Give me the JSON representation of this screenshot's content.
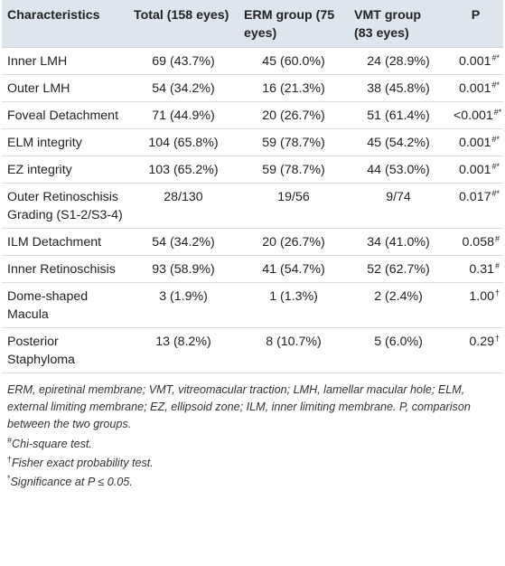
{
  "headers": {
    "characteristics": "Characteristics",
    "total": "Total (158 eyes)",
    "erm": "ERM group (75 eyes)",
    "vmt": "VMT group (83 eyes)",
    "p": "P"
  },
  "rows": [
    {
      "name": "Inner LMH",
      "total": "69 (43.7%)",
      "erm": "45 (60.0%)",
      "vmt": "24 (28.9%)",
      "p": "0.001",
      "p_marks": "#*"
    },
    {
      "name": "Outer LMH",
      "total": "54 (34.2%)",
      "erm": "16 (21.3%)",
      "vmt": "38 (45.8%)",
      "p": "0.001",
      "p_marks": "#*"
    },
    {
      "name": "Foveal Detachment",
      "total": "71 (44.9%)",
      "erm": "20 (26.7%)",
      "vmt": "51 (61.4%)",
      "p": "<0.001",
      "p_marks": "#*"
    },
    {
      "name": "ELM integrity",
      "total": "104 (65.8%)",
      "erm": "59 (78.7%)",
      "vmt": "45 (54.2%)",
      "p": "0.001",
      "p_marks": "#*"
    },
    {
      "name": "EZ integrity",
      "total": "103 (65.2%)",
      "erm": "59 (78.7%)",
      "vmt": "44 (53.0%)",
      "p": "0.001",
      "p_marks": "#*"
    },
    {
      "name": "Outer Retinoschisis Grading (S1-2/S3-4)",
      "total": "28/130",
      "erm": "19/56",
      "vmt": "9/74",
      "p": "0.017",
      "p_marks": "#*"
    },
    {
      "name": "ILM Detachment",
      "total": "54 (34.2%)",
      "erm": "20 (26.7%)",
      "vmt": "34 (41.0%)",
      "p": "0.058",
      "p_marks": "#"
    },
    {
      "name": "Inner Retinoschisis",
      "total": "93 (58.9%)",
      "erm": "41 (54.7%)",
      "vmt": "52 (62.7%)",
      "p": "0.31",
      "p_marks": "#"
    },
    {
      "name": "Dome-shaped Macula",
      "total": "3 (1.9%)",
      "erm": "1 (1.3%)",
      "vmt": "2 (2.4%)",
      "p": "1.00",
      "p_marks": "†"
    },
    {
      "name": "Posterior Staphyloma",
      "total": "13 (8.2%)",
      "erm": "8 (10.7%)",
      "vmt": "5 (6.0%)",
      "p": "0.29",
      "p_marks": "†"
    }
  ],
  "footnotes": {
    "abbreviations": "ERM, epiretinal membrane; VMT, vitreomacular traction; LMH, lamellar macular hole; ELM, external limiting membrane; EZ, ellipsoid zone; ILM, inner limiting membrane. P, comparison between the two groups.",
    "chi_mark": "#",
    "chi": "Chi-square test.",
    "fisher_mark": "†",
    "fisher": "Fisher exact probability test.",
    "sig_mark": "*",
    "sig": "Significance at P ≤ 0.05."
  }
}
